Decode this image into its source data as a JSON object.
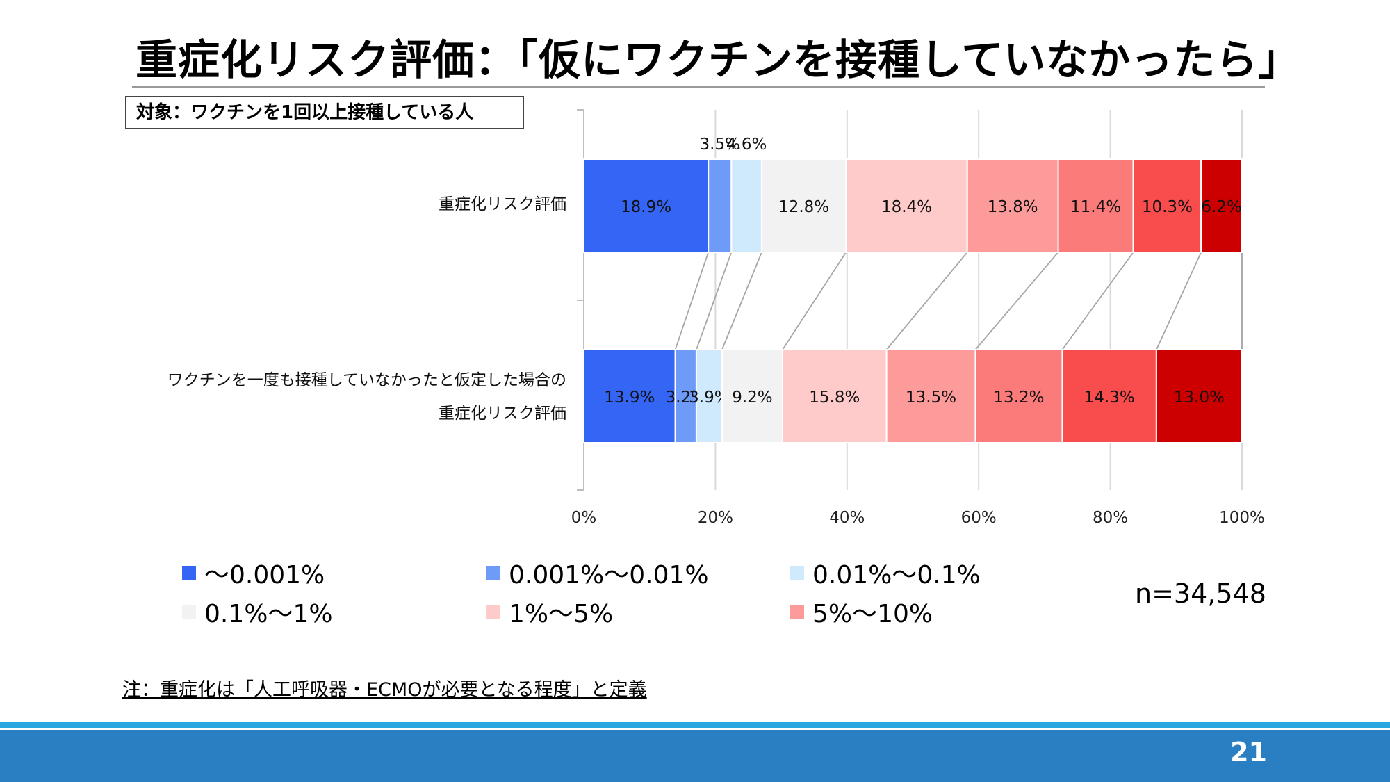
{
  "title": "重症化リスク評価：「仮にワクチンを接種していなかったら」",
  "target_label": "対象：ワクチンを1回以上接種している人",
  "sample_size": "n=34,548",
  "note": "注：重症化は「人工呼吸器・ECMOが必要となる程度」と定義",
  "page_number": "21",
  "chart_data": {
    "type": "bar",
    "orientation": "horizontal",
    "stacked": "percent",
    "categories": [
      "重症化リスク評価",
      "ワクチンを一度も接種していなかったと仮定した場合の重症化リスク評価"
    ],
    "category_label_lines": [
      [
        "重症化リスク評価"
      ],
      [
        "ワクチンを一度も接種していなかったと仮定した場合の",
        "重症化リスク評価"
      ]
    ],
    "series": [
      {
        "name": "〜0.001%",
        "color": "#3565f5",
        "values": [
          18.9,
          13.9
        ]
      },
      {
        "name": "0.001%〜0.01%",
        "color": "#6e9bf7",
        "values": [
          3.5,
          3.2
        ]
      },
      {
        "name": "0.01%〜0.1%",
        "color": "#cfe9fd",
        "values": [
          4.6,
          3.9
        ]
      },
      {
        "name": "0.1%〜1%",
        "color": "#f2f2f2",
        "values": [
          12.8,
          9.2
        ]
      },
      {
        "name": "1%〜5%",
        "color": "#ffcaca",
        "values": [
          18.4,
          15.8
        ]
      },
      {
        "name": "5%〜10%",
        "color": "#fd9a9a",
        "values": [
          13.8,
          13.5
        ]
      },
      {
        "name": "",
        "color": "#fb7a7a",
        "values": [
          11.4,
          13.2
        ]
      },
      {
        "name": "",
        "color": "#f94c4c",
        "values": [
          10.3,
          14.3
        ]
      },
      {
        "name": "",
        "color": "#cc0000",
        "values": [
          6.2,
          13.0
        ]
      }
    ],
    "data_labels": [
      [
        "18.9%",
        "3.5%",
        "4.6%",
        "12.8%",
        "18.4%",
        "13.8%",
        "11.4%",
        "10.3%",
        "6.2%"
      ],
      [
        "13.9%",
        "3.2%",
        "3.9%",
        "9.2%",
        "15.8%",
        "13.5%",
        "13.2%",
        "14.3%",
        "13.0%"
      ]
    ],
    "xlim": [
      0,
      100
    ],
    "xticks": [
      "0%",
      "20%",
      "40%",
      "60%",
      "80%",
      "100%"
    ],
    "grid": true,
    "series_lines": true,
    "legend_position": "bottom"
  }
}
